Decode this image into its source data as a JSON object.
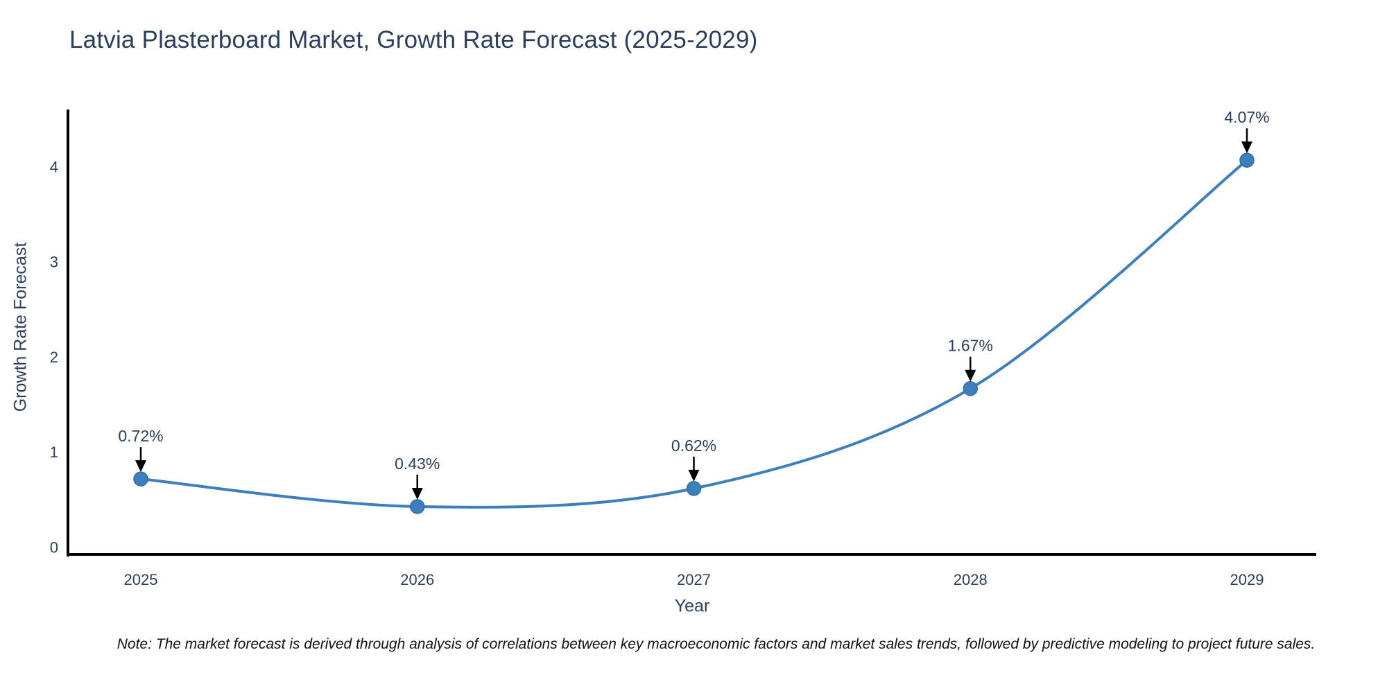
{
  "title": "Latvia Plasterboard Market, Growth Rate Forecast (2025-2029)",
  "note": "Note: The market forecast is derived through analysis of correlations between key macroeconomic factors and market sales trends, followed by predictive modeling to project future sales.",
  "colors": {
    "line": "#3d7ebd",
    "marker_fill": "#3d7ebd",
    "marker_edge": "#2f6da8",
    "axis_line": "#000000",
    "tick_text": "#2a3f5f",
    "annotation_text": "#2a3f5f",
    "annotation_arrow": "#000000",
    "title_text": "#2a3f5f",
    "note_text": "#111111",
    "background": "#ffffff"
  },
  "chart_data": {
    "type": "line",
    "title": "Latvia Plasterboard Market, Growth Rate Forecast (2025-2029)",
    "xlabel": "Year",
    "ylabel": "Growth Rate Forecast",
    "categories": [
      "2025",
      "2026",
      "2027",
      "2028",
      "2029"
    ],
    "values": [
      0.72,
      0.43,
      0.62,
      1.67,
      4.07
    ],
    "point_labels": [
      "0.72%",
      "0.43%",
      "0.62%",
      "1.67%",
      "4.07%"
    ],
    "yticks": [
      0,
      1,
      2,
      3,
      4
    ],
    "ylim": [
      0,
      4.6
    ],
    "grid": false,
    "legend": "none",
    "line_shape": "spline",
    "annotations": "value labels above each point with downward arrows"
  }
}
